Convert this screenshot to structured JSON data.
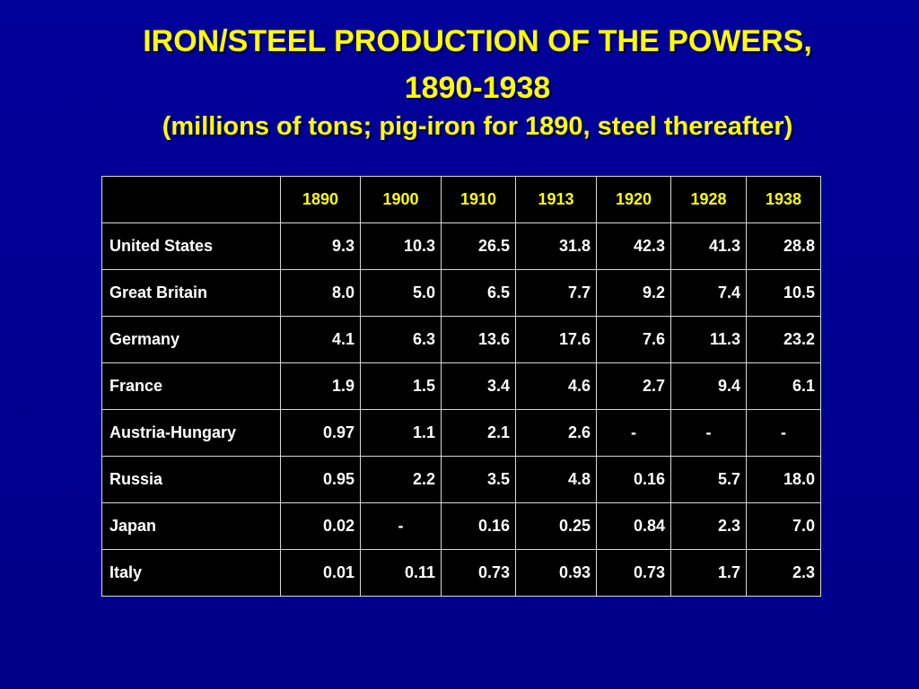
{
  "title_line1": "IRON/STEEL PRODUCTION OF THE POWERS,",
  "title_line2": "1890-1938",
  "subtitle": "(millions of tons; pig-iron for 1890, steel thereafter)",
  "colors": {
    "background": "#000090",
    "title": "#ffff00",
    "table_background": "#000000",
    "header_text": "#ffff00",
    "cell_text": "#ffffff"
  },
  "table": {
    "columns": [
      "",
      "1890",
      "1900",
      "1910",
      "1913",
      "1920",
      "1928",
      "1938"
    ],
    "rows": [
      [
        "United States",
        "9.3",
        "10.3",
        "26.5",
        "31.8",
        "42.3",
        "41.3",
        "28.8"
      ],
      [
        "Great Britain",
        "8.0",
        "5.0",
        "6.5",
        "7.7",
        "9.2",
        "7.4",
        "10.5"
      ],
      [
        "Germany",
        "4.1",
        "6.3",
        "13.6",
        "17.6",
        "7.6",
        "11.3",
        "23.2"
      ],
      [
        "France",
        "1.9",
        "1.5",
        "3.4",
        "4.6",
        "2.7",
        "9.4",
        "6.1"
      ],
      [
        "Austria-Hungary",
        "0.97",
        "1.1",
        "2.1",
        "2.6",
        "-",
        "-",
        "-"
      ],
      [
        "Russia",
        "0.95",
        "2.2",
        "3.5",
        "4.8",
        "0.16",
        "5.7",
        "18.0"
      ],
      [
        "Japan",
        "0.02",
        "-",
        "0.16",
        "0.25",
        "0.84",
        "2.3",
        "7.0"
      ],
      [
        "Italy",
        "0.01",
        "0.11",
        "0.73",
        "0.93",
        "0.73",
        "1.7",
        "2.3"
      ]
    ]
  }
}
